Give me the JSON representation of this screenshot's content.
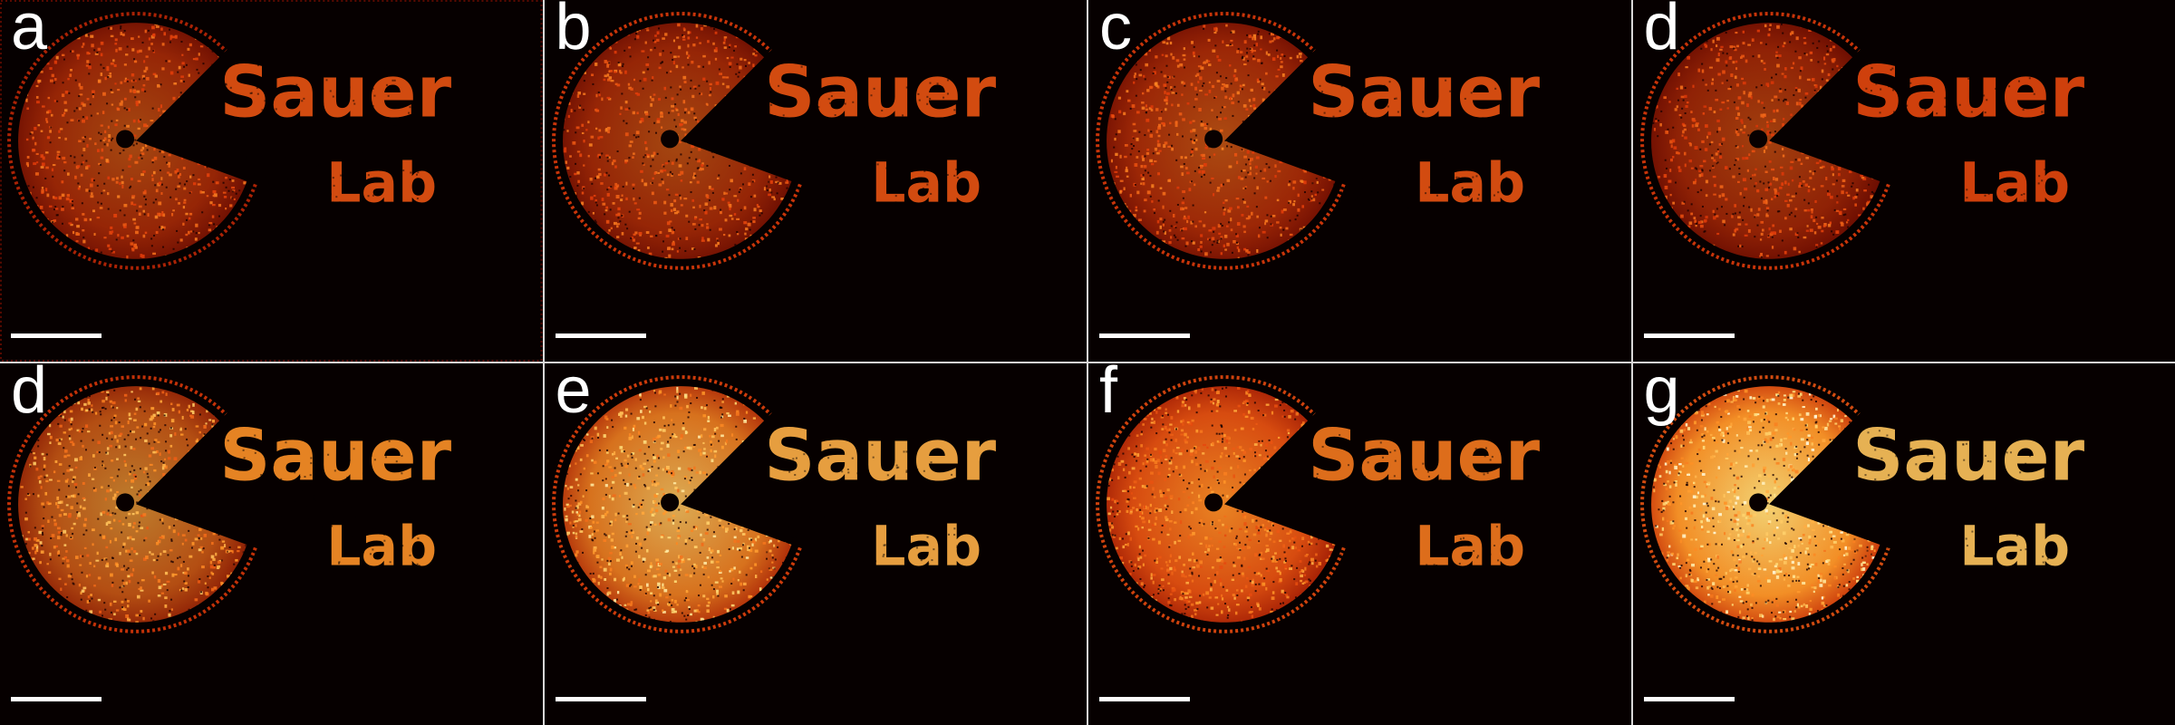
{
  "figure": {
    "panels": [
      {
        "letter": "a",
        "logo_line1": "Sauer",
        "logo_line2": "Lab",
        "brightness": 0.55,
        "density": 0.55,
        "ring": 0.35,
        "border": true
      },
      {
        "letter": "b",
        "logo_line1": "Sauer",
        "logo_line2": "Lab",
        "brightness": 0.55,
        "density": 0.55,
        "ring": 0.6,
        "border": false
      },
      {
        "letter": "c",
        "logo_line1": "Sauer",
        "logo_line2": "Lab",
        "brightness": 0.55,
        "density": 0.6,
        "ring": 0.6,
        "border": false
      },
      {
        "letter": "d",
        "logo_line1": "Sauer",
        "logo_line2": "Lab",
        "brightness": 0.5,
        "density": 0.55,
        "ring": 0.6,
        "border": false
      },
      {
        "letter": "d",
        "logo_line1": "Sauer",
        "logo_line2": "Lab",
        "brightness": 0.8,
        "density": 0.65,
        "ring": 0.55,
        "border": false
      },
      {
        "letter": "e",
        "logo_line1": "Sauer",
        "logo_line2": "Lab",
        "brightness": 0.92,
        "density": 0.85,
        "ring": 0.65,
        "border": false
      },
      {
        "letter": "f",
        "logo_line1": "Sauer",
        "logo_line2": "Lab",
        "brightness": 0.7,
        "density": 0.95,
        "ring": 0.7,
        "border": false
      },
      {
        "letter": "g",
        "logo_line1": "Sauer",
        "logo_line2": "Lab",
        "brightness": 1.0,
        "density": 1.0,
        "ring": 0.75,
        "border": false
      }
    ]
  }
}
